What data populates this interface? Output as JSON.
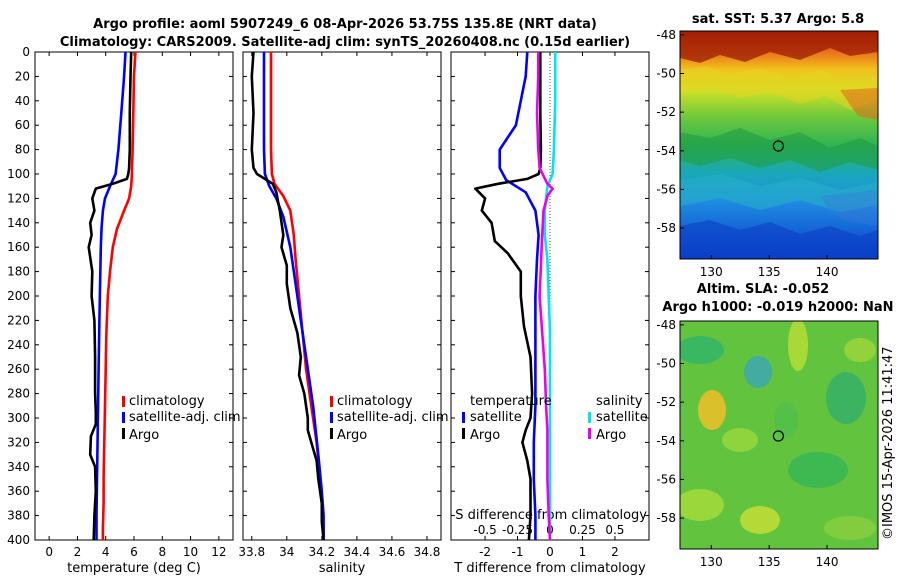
{
  "figure": {
    "title_line1": "Argo profile: aoml 5907249_6 08-Apr-2026 53.75S 135.8E (NRT data)",
    "title_line2": "Climatology: CARS2009. Satellite-adj clim: synTS_20260408.nc (0.15d earlier)",
    "copyright": "©IMOS 15-Apr-2026 11:41:47"
  },
  "colors": {
    "climatology": "#ff0000",
    "satellite": "#0000ff",
    "argo": "#000000",
    "salinity_satellite": "#00e5ee",
    "salinity_argo": "#ee00ee"
  },
  "chart_data": [
    {
      "id": "temperature",
      "type": "line",
      "xlabel": "temperature (deg C)",
      "ylabel": "",
      "xlim": [
        -1,
        13
      ],
      "ylim": [
        400,
        0
      ],
      "xticks": [
        0,
        2,
        4,
        6,
        8,
        10,
        12
      ],
      "xtick_labels": [
        "0",
        "2",
        "4",
        "6",
        "8",
        "10",
        "12"
      ],
      "yticks": [
        0,
        20,
        40,
        60,
        80,
        100,
        120,
        140,
        160,
        180,
        200,
        220,
        240,
        260,
        280,
        300,
        320,
        340,
        360,
        380,
        400
      ],
      "ytick_labels": [
        "0",
        "20",
        "40",
        "60",
        "80",
        "100",
        "120",
        "140",
        "160",
        "180",
        "200",
        "220",
        "240",
        "260",
        "280",
        "300",
        "320",
        "340",
        "360",
        "380",
        "400"
      ],
      "legend": [
        "climatology",
        "satellite-adj. clim",
        "Argo"
      ],
      "series": [
        {
          "name": "climatology",
          "x": [
            6.1,
            6.0,
            5.95,
            5.9,
            5.85,
            5.8,
            5.65,
            5.3,
            4.8,
            4.5,
            4.3,
            4.15,
            4.05,
            4.0,
            3.95,
            3.9,
            3.85,
            3.85,
            3.8,
            3.8
          ],
          "y": [
            0,
            20,
            50,
            80,
            100,
            110,
            120,
            130,
            145,
            160,
            180,
            200,
            230,
            260,
            290,
            320,
            350,
            370,
            390,
            400
          ]
        },
        {
          "name": "satellite-adj. clim",
          "x": [
            5.4,
            5.3,
            5.1,
            4.9,
            4.7,
            4.3,
            3.95,
            3.8,
            3.7,
            3.65,
            3.6,
            3.55,
            3.5,
            3.45,
            3.4,
            3.35,
            3.35
          ],
          "y": [
            0,
            20,
            50,
            80,
            100,
            110,
            120,
            130,
            145,
            160,
            190,
            220,
            260,
            300,
            340,
            380,
            400
          ]
        },
        {
          "name": "Argo",
          "x": [
            5.8,
            5.75,
            5.7,
            5.7,
            5.65,
            5.6,
            5.5,
            4.5,
            3.3,
            3.05,
            3.2,
            2.9,
            3.0,
            2.8,
            3.05,
            3.0,
            3.2,
            3.25,
            3.25,
            3.3,
            3.3,
            2.95,
            2.9,
            3.25,
            3.3,
            3.2,
            3.15
          ],
          "y": [
            0,
            20,
            50,
            80,
            95,
            100,
            104,
            108,
            112,
            120,
            130,
            140,
            150,
            160,
            180,
            200,
            220,
            250,
            280,
            295,
            305,
            315,
            330,
            340,
            360,
            380,
            400
          ]
        }
      ]
    },
    {
      "id": "salinity",
      "type": "line",
      "xlabel": "salinity",
      "ylabel": "",
      "xlim": [
        33.75,
        34.88
      ],
      "ylim": [
        400,
        0
      ],
      "xticks": [
        33.8,
        34,
        34.2,
        34.4,
        34.6,
        34.8
      ],
      "xtick_labels": [
        "33.8",
        "34",
        "34.2",
        "34.4",
        "34.6",
        "34.8"
      ],
      "legend": [
        "climatology",
        "satellite-adj. clim",
        "Argo"
      ],
      "series": [
        {
          "name": "climatology",
          "x": [
            33.91,
            33.91,
            33.91,
            33.915,
            33.93,
            33.98,
            34.02,
            34.04,
            34.05,
            34.07,
            34.09,
            34.11,
            34.14,
            34.17,
            34.19,
            34.2,
            34.21,
            34.21
          ],
          "y": [
            0,
            40,
            80,
            100,
            108,
            118,
            130,
            150,
            170,
            200,
            230,
            260,
            290,
            320,
            350,
            370,
            390,
            400
          ]
        },
        {
          "name": "satellite-adj. clim",
          "x": [
            33.87,
            33.87,
            33.87,
            33.875,
            33.9,
            33.94,
            33.98,
            34.02,
            34.05,
            34.08,
            34.11,
            34.15,
            34.18,
            34.2,
            34.21,
            34.21
          ],
          "y": [
            0,
            40,
            80,
            100,
            110,
            120,
            135,
            160,
            190,
            220,
            250,
            290,
            330,
            360,
            380,
            400
          ]
        },
        {
          "name": "Argo",
          "x": [
            33.81,
            33.8,
            33.81,
            33.8,
            33.81,
            33.83,
            33.92,
            33.94,
            33.96,
            33.98,
            33.97,
            34.0,
            34.0,
            34.02,
            34.06,
            34.08,
            34.07,
            34.1,
            34.12,
            34.12,
            34.14,
            34.17,
            34.18,
            34.2,
            34.2,
            34.21
          ],
          "y": [
            0,
            20,
            50,
            80,
            95,
            100,
            108,
            115,
            130,
            150,
            160,
            175,
            190,
            210,
            230,
            250,
            265,
            280,
            300,
            310,
            320,
            335,
            350,
            370,
            385,
            400
          ]
        }
      ]
    },
    {
      "id": "difference",
      "type": "line",
      "xlabel": "T difference from climatology",
      "xlim": [
        -3.05,
        3.05
      ],
      "ylim": [
        400,
        0
      ],
      "xticks": [
        -2,
        -1,
        0,
        1,
        2
      ],
      "xtick_labels": [
        "-2",
        "-1",
        "0",
        "1",
        "2"
      ],
      "secondary_xlabel": "S difference from climatology",
      "secondary_xticks": [
        -0.5,
        -0.25,
        0,
        0.25,
        0.5
      ],
      "secondary_xtick_labels": [
        "-0.5",
        "-0.25",
        "0",
        "0.25",
        "0.5"
      ],
      "legend_groups": [
        {
          "title": "temperature",
          "items": [
            "satellite",
            "Argo"
          ]
        },
        {
          "title": "salinity",
          "items": [
            "satellite",
            "Argo"
          ]
        }
      ],
      "series": [
        {
          "name": "temperature satellite",
          "x": [
            -0.7,
            -0.75,
            -0.9,
            -1.05,
            -1.3,
            -1.55,
            -1.55,
            -1.35,
            -0.75,
            -0.45,
            -0.35,
            -0.4,
            -0.45,
            -0.45,
            -0.45,
            -0.45,
            -0.5,
            -0.5,
            -0.45,
            -0.45
          ],
          "y": [
            0,
            20,
            40,
            60,
            70,
            80,
            95,
            105,
            115,
            130,
            150,
            170,
            200,
            230,
            260,
            290,
            320,
            350,
            380,
            400
          ]
        },
        {
          "name": "temperature Argo",
          "x": [
            -0.3,
            -0.3,
            -0.3,
            -0.28,
            -0.3,
            -0.35,
            -0.7,
            -1.6,
            -2.3,
            -2.0,
            -2.1,
            -1.8,
            -1.7,
            -1.3,
            -0.9,
            -0.9,
            -0.8,
            -0.6,
            -0.55,
            -0.6,
            -0.75,
            -0.85,
            -0.7,
            -0.6,
            -0.6,
            -0.65
          ],
          "y": [
            0,
            20,
            50,
            80,
            95,
            100,
            104,
            108,
            112,
            120,
            130,
            140,
            155,
            165,
            180,
            200,
            225,
            250,
            280,
            300,
            310,
            320,
            335,
            350,
            380,
            400
          ]
        },
        {
          "name": "salinity satellite",
          "x": [
            0.04,
            0.04,
            0.03,
            0.02,
            -0.02,
            -0.04,
            -0.04,
            -0.02,
            -0.01,
            0.0,
            0.0,
            0.0,
            0.0,
            0.0
          ],
          "y": [
            0,
            40,
            80,
            100,
            110,
            130,
            150,
            170,
            200,
            230,
            270,
            320,
            360,
            400
          ]
        },
        {
          "name": "salinity Argo",
          "x": [
            -0.09,
            -0.09,
            -0.1,
            -0.09,
            -0.08,
            -0.02,
            0.02,
            -0.02,
            -0.05,
            -0.06,
            -0.07,
            -0.08,
            -0.06,
            -0.04,
            -0.03,
            -0.02,
            -0.02,
            -0.02,
            -0.01,
            0.0
          ],
          "y": [
            0,
            20,
            50,
            80,
            95,
            108,
            112,
            118,
            130,
            150,
            175,
            200,
            230,
            260,
            290,
            310,
            330,
            350,
            380,
            400
          ]
        }
      ]
    },
    {
      "id": "sst_map",
      "type": "heatmap",
      "title": "sat. SST: 5.37 Argo: 5.8",
      "xticks": [
        130,
        135,
        140
      ],
      "xtick_labels": [
        "130",
        "135",
        "140"
      ],
      "yticks": [
        -48,
        -50,
        -52,
        -54,
        -56,
        -58
      ],
      "ytick_labels": [
        "-48",
        "-50",
        "-52",
        "-54",
        "-56",
        "-58"
      ],
      "xlim": [
        127.3,
        144.4
      ],
      "ylim": [
        -59.6,
        -47.8
      ],
      "marker": {
        "lon": 135.8,
        "lat": -53.75
      }
    },
    {
      "id": "sla_map",
      "type": "heatmap",
      "title_line1": "Altim. SLA: -0.052",
      "title_line2": "Argo h1000: -0.019 h2000: NaN",
      "xticks": [
        130,
        135,
        140
      ],
      "xtick_labels": [
        "130",
        "135",
        "140"
      ],
      "yticks": [
        -48,
        -50,
        -52,
        -54,
        -56,
        -58
      ],
      "ytick_labels": [
        "-48",
        "-50",
        "-52",
        "-54",
        "-56",
        "-58"
      ],
      "xlim": [
        127.3,
        144.4
      ],
      "ylim": [
        -59.6,
        -47.8
      ],
      "marker": {
        "lon": 135.8,
        "lat": -53.75
      }
    }
  ]
}
